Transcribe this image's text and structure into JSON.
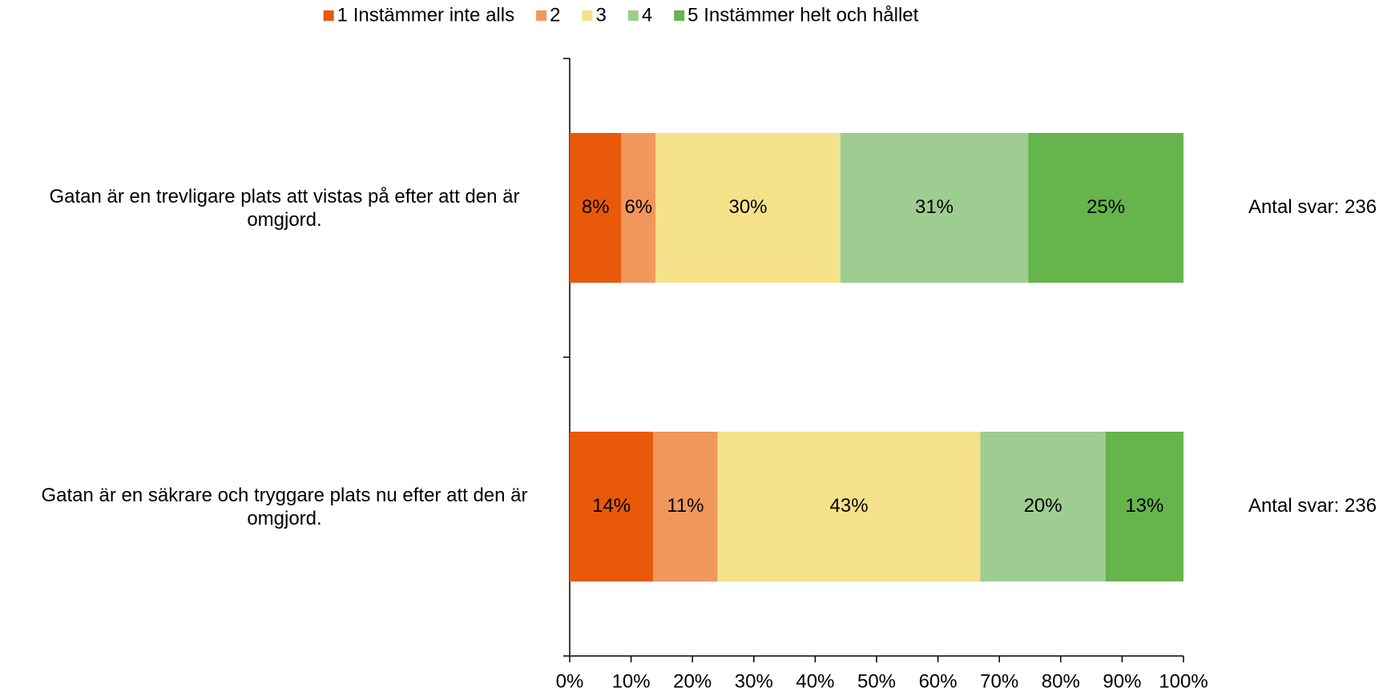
{
  "chart_data": {
    "type": "stacked-barh",
    "categories": [
      "Gatan är en trevligare plats att vistas på efter att den är omgjord.",
      "Gatan är en säkrare och tryggare plats nu efter att den är omgjord."
    ],
    "series": [
      {
        "name": "1 Instämmer inte alls",
        "color": "#e85a0a",
        "values": [
          8.4,
          13.6
        ],
        "value_labels": [
          "8%",
          "14%"
        ]
      },
      {
        "name": "2",
        "color": "#f2975c",
        "values": [
          5.6,
          10.5
        ],
        "value_labels": [
          "6%",
          "11%"
        ]
      },
      {
        "name": "3",
        "color": "#f6e18b",
        "values": [
          30.1,
          42.8
        ],
        "value_labels": [
          "30%",
          "43%"
        ]
      },
      {
        "name": "4",
        "color": "#9ecd91",
        "values": [
          30.6,
          20.4
        ],
        "value_labels": [
          "31%",
          "20%"
        ]
      },
      {
        "name": "5 Instämmer helt och hållet",
        "color": "#66b44c",
        "values": [
          25.3,
          12.7
        ],
        "value_labels": [
          "25%",
          "13%"
        ]
      }
    ],
    "annotations": [
      "Antal svar: 236",
      "Antal svar: 236"
    ],
    "xlim": [
      0,
      100
    ],
    "xticks": [
      {
        "value": 0,
        "label": "0%"
      },
      {
        "value": 10,
        "label": "10%"
      },
      {
        "value": 20,
        "label": "20%"
      },
      {
        "value": 30,
        "label": "30%"
      },
      {
        "value": 40,
        "label": "40%"
      },
      {
        "value": 50,
        "label": "50%"
      },
      {
        "value": 60,
        "label": "60%"
      },
      {
        "value": 70,
        "label": "70%"
      },
      {
        "value": 80,
        "label": "80%"
      },
      {
        "value": 90,
        "label": "90%"
      },
      {
        "value": 100,
        "label": "100%"
      }
    ],
    "legend": "top"
  }
}
